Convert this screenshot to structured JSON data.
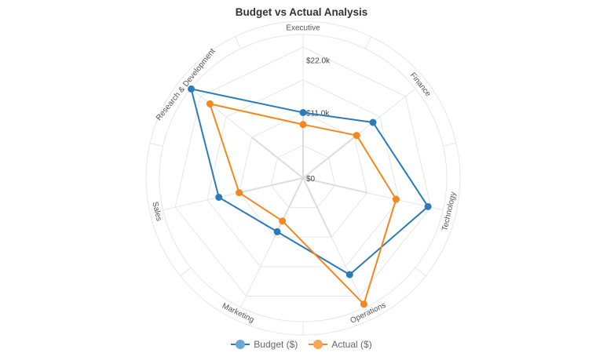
{
  "chart_data": {
    "type": "radar",
    "title": "Budget vs Actual Analysis",
    "categories": [
      "Executive",
      "Finance",
      "Technology",
      "Operations",
      "Marketing",
      "Sales",
      "Research & Development"
    ],
    "series": [
      {
        "name": "Budget ($)",
        "color": "#2b7bb9",
        "values": [
          11000,
          15000,
          21500,
          18000,
          10000,
          14500,
          24000
        ]
      },
      {
        "name": "Actual ($)",
        "color": "#f5871f",
        "values": [
          9000,
          11500,
          16000,
          23500,
          8000,
          11000,
          20000
        ]
      }
    ],
    "rlim": [
      0,
      22000
    ],
    "radial_tick_labels": [
      "$0",
      "$11.0k",
      "$22.0k"
    ],
    "grid": true,
    "legend_position": "bottom"
  }
}
